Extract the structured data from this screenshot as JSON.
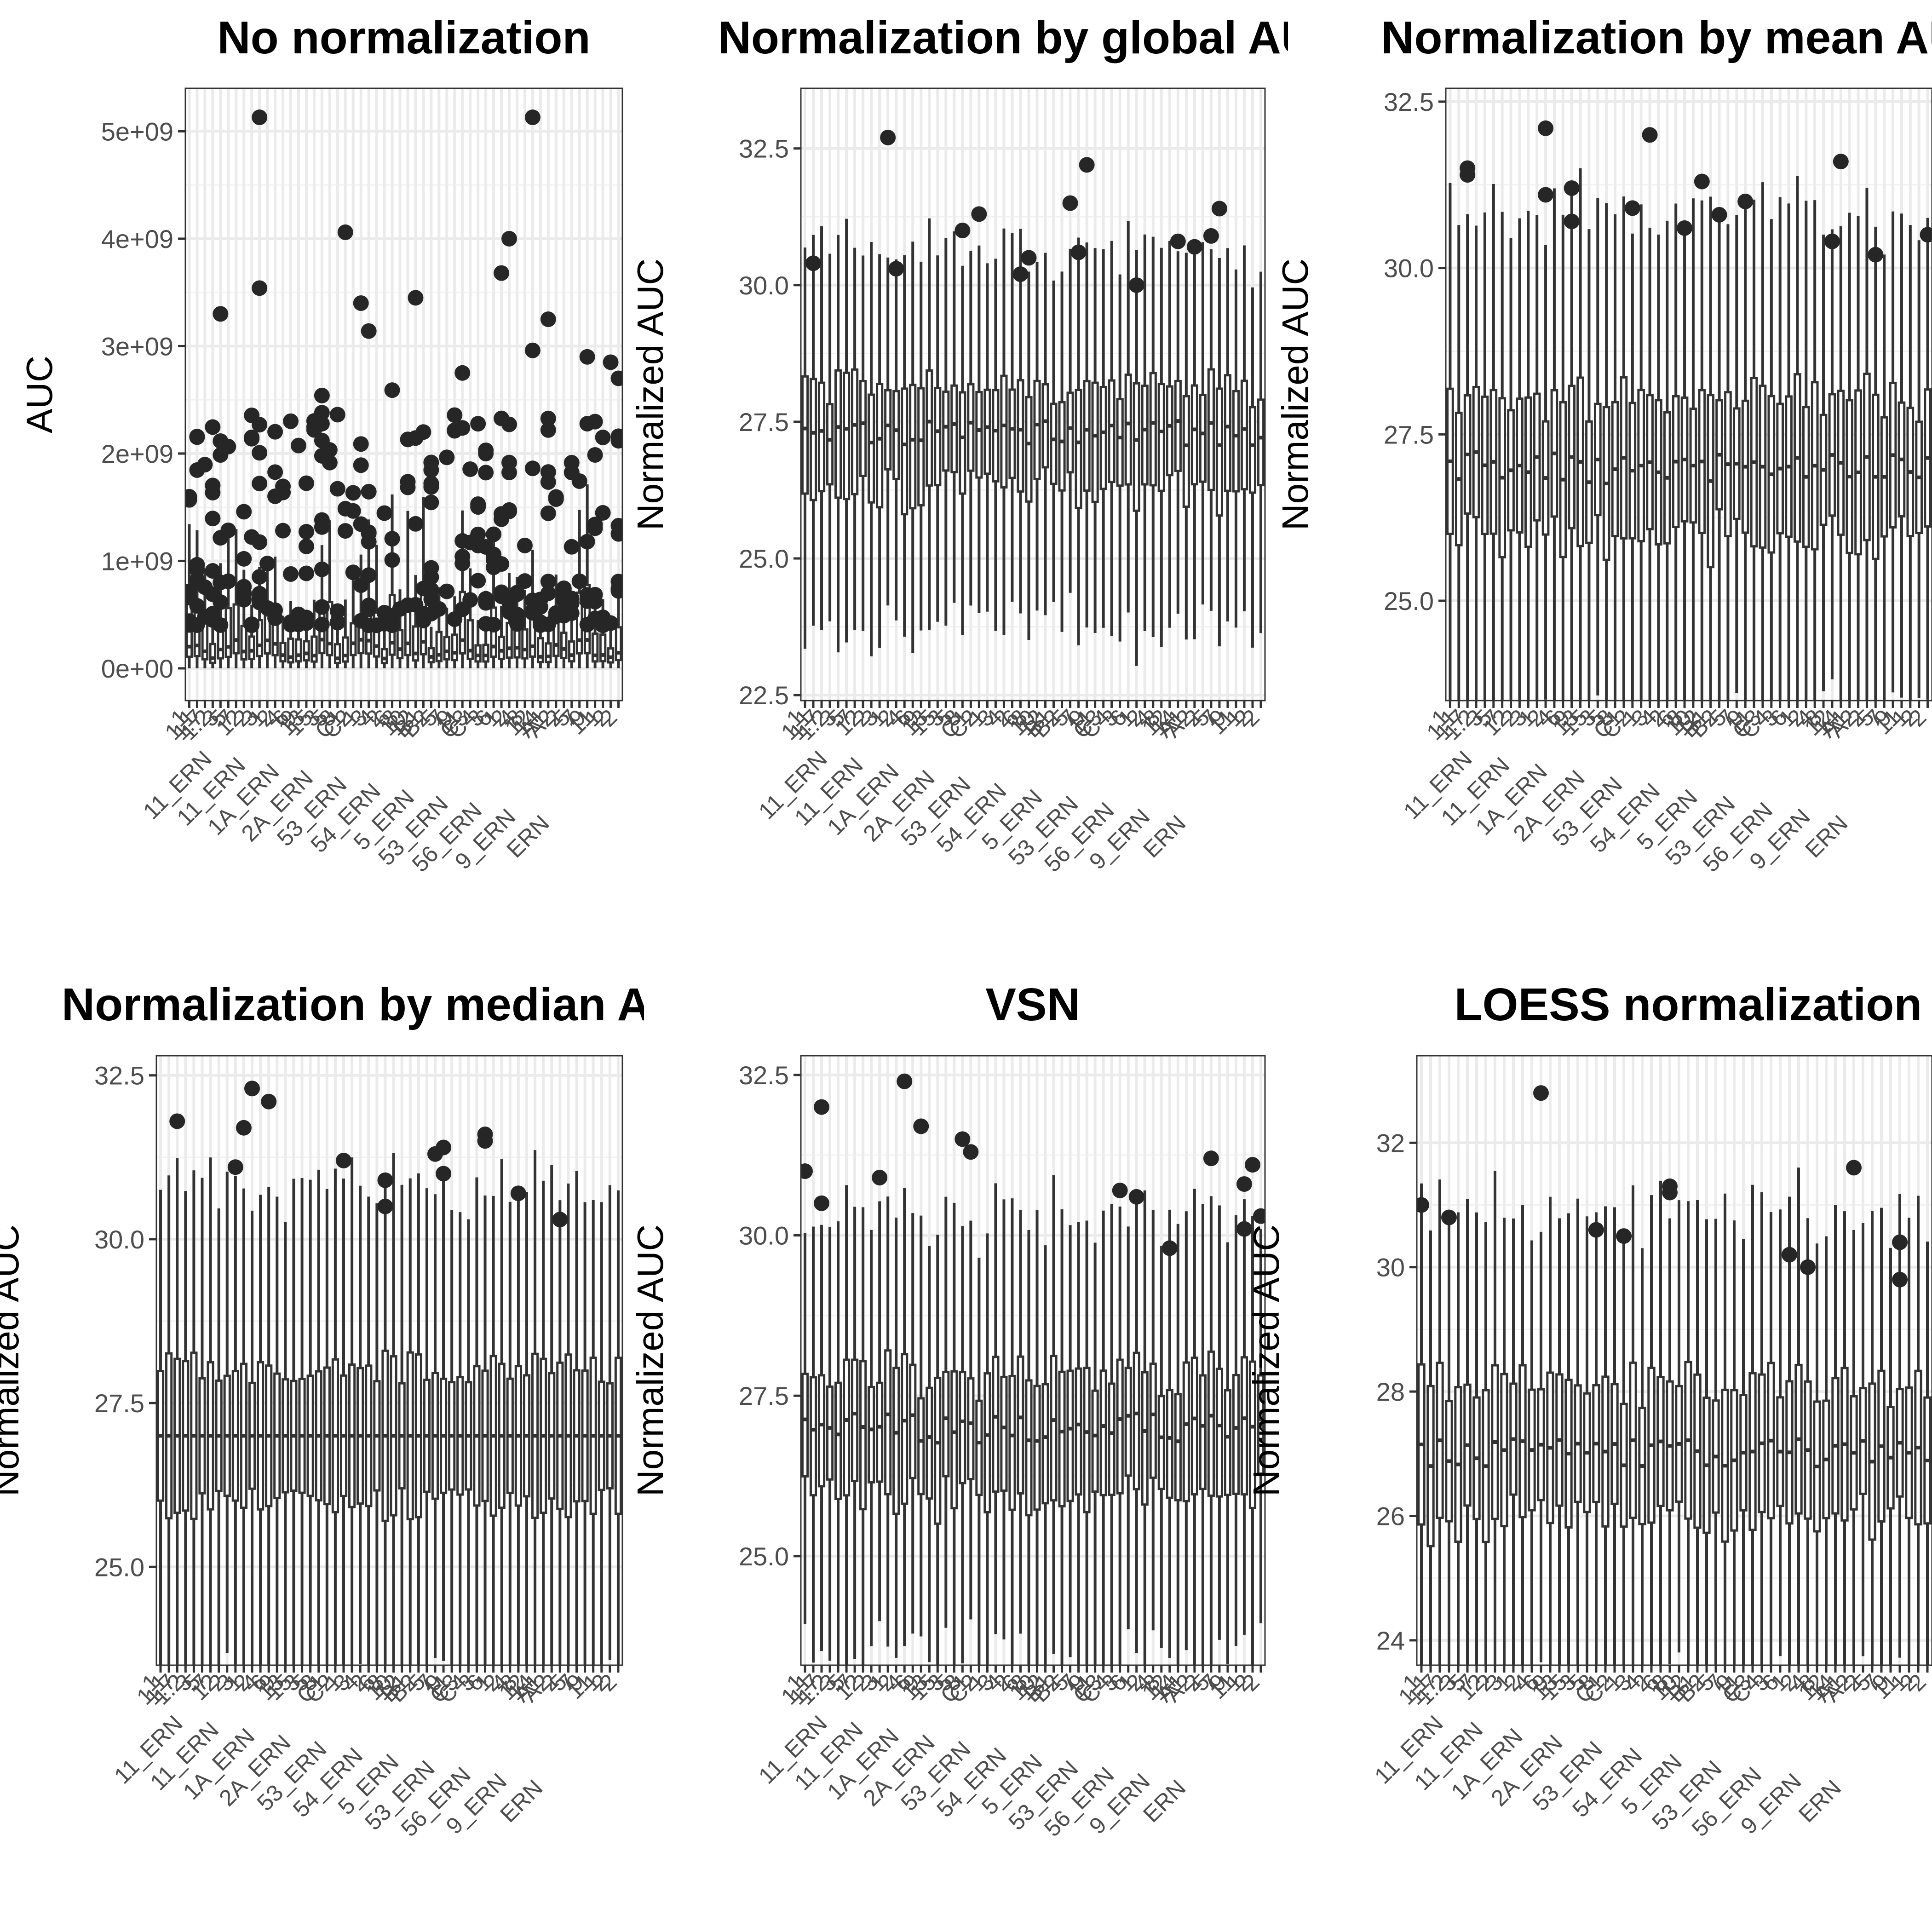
{
  "chart_data": [
    {
      "type": "boxplot",
      "title": "No normalization",
      "ylabel": "AUC",
      "xlabel": "",
      "ylim": [
        -300000000,
        5400000000
      ],
      "ytick_values": [
        0,
        1000000000,
        2000000000,
        3000000000,
        4000000000,
        5000000000
      ],
      "ytick_labels": [
        "0e+00",
        "1e+09",
        "2e+09",
        "3e+09",
        "4e+09",
        "5e+09"
      ],
      "n_samples": 56,
      "median_typical": 150000000,
      "box_range_typical": [
        80000000,
        320000000
      ],
      "outlier_examples": [
        5130000000,
        5130000000,
        4060000000,
        4000000000,
        3680000000,
        3540000000,
        3450000000,
        3400000000,
        3300000000,
        3250000000,
        3140000000,
        2960000000,
        2900000000,
        2850000000,
        2750000000,
        2700000000,
        2590000000,
        2540000000,
        2380000000,
        2200000000,
        2150000000,
        2000000000
      ],
      "grid": true
    },
    {
      "type": "boxplot",
      "title": "Normalization by global AUC",
      "ylabel": "Normalized AUC",
      "xlabel": "",
      "ylim": [
        22.4,
        33.6
      ],
      "ytick_values": [
        22.5,
        25.0,
        27.5,
        30.0,
        32.5
      ],
      "ytick_labels": [
        "22.5",
        "25.0",
        "27.5",
        "30.0",
        "32.5"
      ],
      "n_samples": 56,
      "median_typical": 27.3,
      "box_range_typical": [
        26.3,
        28.1
      ],
      "outlier_examples": [
        32.7,
        32.2,
        31.5,
        31.4,
        31.3,
        31.0,
        30.9,
        30.8,
        30.7,
        30.6,
        30.5,
        30.4,
        30.3,
        30.2,
        30.0
      ],
      "grid": true
    },
    {
      "type": "boxplot",
      "title": "Normalization by mean AUC",
      "ylabel": "Normalized AUC",
      "xlabel": "",
      "ylim": [
        23.5,
        32.7
      ],
      "ytick_values": [
        25.0,
        27.5,
        30.0,
        32.5
      ],
      "ytick_labels": [
        "25.0",
        "27.5",
        "30.0",
        "32.5"
      ],
      "n_samples": 56,
      "median_typical": 27.0,
      "box_range_typical": [
        26.0,
        28.0
      ],
      "outlier_examples": [
        32.1,
        32.0,
        31.6,
        31.5,
        31.4,
        31.3,
        31.2,
        31.1,
        31.0,
        30.9,
        30.8,
        30.7,
        30.6,
        30.5,
        30.4,
        30.2
      ],
      "grid": true
    },
    {
      "type": "boxplot",
      "title": "Normalization by median AUC",
      "ylabel": "Normalized AUC",
      "xlabel": "",
      "ylim": [
        23.5,
        32.8
      ],
      "ytick_values": [
        25.0,
        27.5,
        30.0,
        32.5
      ],
      "ytick_labels": [
        "25.0",
        "27.5",
        "30.0",
        "32.5"
      ],
      "n_samples": 56,
      "median_typical": 27.0,
      "box_range_typical": [
        26.0,
        28.0
      ],
      "outlier_examples": [
        32.3,
        32.1,
        31.8,
        31.7,
        31.6,
        31.5,
        31.4,
        31.3,
        31.2,
        31.1,
        31.0,
        30.9,
        30.7,
        30.5,
        30.3
      ],
      "grid": true
    },
    {
      "type": "boxplot",
      "title": "VSN",
      "ylabel": "Normalized AUC",
      "xlabel": "",
      "ylim": [
        23.3,
        32.8
      ],
      "ytick_values": [
        25.0,
        27.5,
        30.0,
        32.5
      ],
      "ytick_labels": [
        "25.0",
        "27.5",
        "30.0",
        "32.5"
      ],
      "n_samples": 56,
      "median_typical": 27.0,
      "box_range_typical": [
        26.0,
        27.8
      ],
      "outlier_examples": [
        32.4,
        32.0,
        31.7,
        31.5,
        31.3,
        31.2,
        31.1,
        31.0,
        30.9,
        30.8,
        30.7,
        30.6,
        30.5,
        30.3,
        30.1,
        29.8
      ],
      "grid": true
    },
    {
      "type": "boxplot",
      "title": "LOESS normalization",
      "ylabel": "Normalized AUC",
      "xlabel": "",
      "ylim": [
        23.6,
        33.4
      ],
      "ytick_values": [
        24,
        26,
        28,
        30,
        32
      ],
      "ytick_labels": [
        "24",
        "26",
        "28",
        "30",
        "32"
      ],
      "n_samples": 56,
      "median_typical": 27.0,
      "box_range_typical": [
        26.0,
        28.0
      ],
      "outlier_examples": [
        32.8,
        31.6,
        31.3,
        31.2,
        31.0,
        30.8,
        30.6,
        30.5,
        30.4,
        30.2,
        30.0,
        29.8
      ],
      "grid": true
    }
  ],
  "x_tick_labels": [
    "1",
    "1.1",
    "1.7",
    "1.2",
    "3",
    "5",
    "7",
    "12",
    "2",
    "3",
    "1",
    "2",
    "4",
    "6",
    "9",
    "13",
    "15",
    "3",
    "5",
    "8",
    "C1",
    "C2",
    "1",
    "3",
    "4",
    "2",
    "6",
    "8",
    "10",
    "12",
    "B1",
    "B2",
    "5",
    "7",
    "9",
    "11",
    "C3",
    "C4",
    "3",
    "6",
    "1",
    "2",
    "4",
    "8",
    "12",
    "14",
    "A1",
    "A2",
    "2",
    "5",
    "7",
    "9",
    "11",
    "1",
    "2",
    "2"
  ],
  "x_tick_labels_lower": [
    "11_ERN",
    "11_ERN",
    "1A_ERN",
    "2A_ERN",
    "53_ERN",
    "54_ERN",
    "5_ERN",
    "53_ERN",
    "56_ERN",
    "9_ERN",
    "ERN"
  ]
}
